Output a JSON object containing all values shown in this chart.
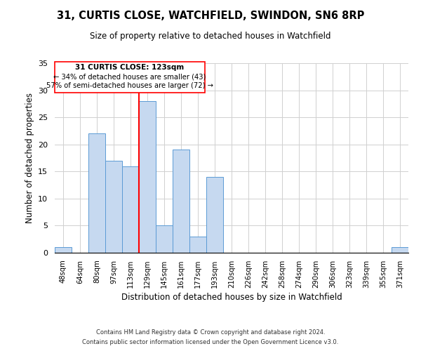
{
  "title": "31, CURTIS CLOSE, WATCHFIELD, SWINDON, SN6 8RP",
  "subtitle": "Size of property relative to detached houses in Watchfield",
  "xlabel": "Distribution of detached houses by size in Watchfield",
  "ylabel": "Number of detached properties",
  "bin_labels": [
    "48sqm",
    "64sqm",
    "80sqm",
    "97sqm",
    "113sqm",
    "129sqm",
    "145sqm",
    "161sqm",
    "177sqm",
    "193sqm",
    "210sqm",
    "226sqm",
    "242sqm",
    "258sqm",
    "274sqm",
    "290sqm",
    "306sqm",
    "323sqm",
    "339sqm",
    "355sqm",
    "371sqm"
  ],
  "bin_counts": [
    1,
    0,
    22,
    17,
    16,
    28,
    5,
    19,
    3,
    14,
    0,
    0,
    0,
    0,
    0,
    0,
    0,
    0,
    0,
    0,
    1
  ],
  "bar_color": "#c6d9f0",
  "bar_edge_color": "#5b9bd5",
  "annotation_text_line1": "31 CURTIS CLOSE: 123sqm",
  "annotation_text_line2": "← 34% of detached houses are smaller (43)",
  "annotation_text_line3": "57% of semi-detached houses are larger (72) →",
  "ylim": [
    0,
    35
  ],
  "yticks": [
    0,
    5,
    10,
    15,
    20,
    25,
    30,
    35
  ],
  "footer1": "Contains HM Land Registry data © Crown copyright and database right 2024.",
  "footer2": "Contains public sector information licensed under the Open Government Licence v3.0."
}
